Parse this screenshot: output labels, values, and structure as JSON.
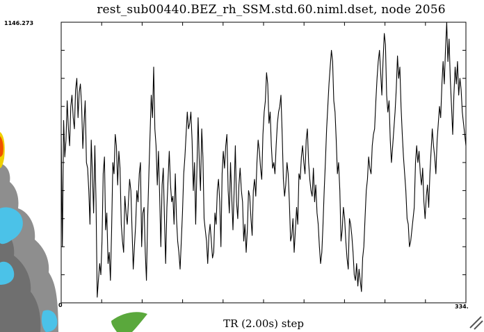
{
  "title": "rest_sub00440.BEZ_rh_SSM.std.60.niml.dset, node 2056",
  "chart_data": {
    "type": "line",
    "title": "rest_sub00440.BEZ_rh_SSM.std.60.niml.dset, node 2056",
    "xlabel": "TR (2.00s) step",
    "ylabel": "",
    "xlim": [
      0,
      334
    ],
    "ymax_label": "1146.273",
    "xmin_label": "0",
    "xmax_label": "334.",
    "ylim": [
      0,
      1
    ],
    "grid": false,
    "line_color": "#000000",
    "series": [
      {
        "values": [
          0.6,
          0.2,
          0.65,
          0.52,
          0.58,
          0.72,
          0.62,
          0.56,
          0.7,
          0.74,
          0.66,
          0.62,
          0.76,
          0.8,
          0.66,
          0.75,
          0.78,
          0.7,
          0.55,
          0.64,
          0.72,
          0.5,
          0.48,
          0.4,
          0.28,
          0.58,
          0.46,
          0.32,
          0.56,
          0.36,
          0.02,
          0.08,
          0.14,
          0.1,
          0.22,
          0.46,
          0.52,
          0.26,
          0.32,
          0.14,
          0.18,
          0.08,
          0.26,
          0.5,
          0.46,
          0.6,
          0.56,
          0.42,
          0.54,
          0.48,
          0.28,
          0.22,
          0.18,
          0.38,
          0.32,
          0.28,
          0.36,
          0.44,
          0.4,
          0.26,
          0.12,
          0.2,
          0.28,
          0.4,
          0.36,
          0.46,
          0.5,
          0.2,
          0.32,
          0.34,
          0.18,
          0.08,
          0.3,
          0.46,
          0.6,
          0.74,
          0.66,
          0.84,
          0.62,
          0.56,
          0.42,
          0.54,
          0.38,
          0.2,
          0.42,
          0.48,
          0.3,
          0.14,
          0.34,
          0.44,
          0.54,
          0.42,
          0.36,
          0.38,
          0.28,
          0.46,
          0.3,
          0.22,
          0.18,
          0.12,
          0.22,
          0.32,
          0.46,
          0.52,
          0.6,
          0.68,
          0.62,
          0.64,
          0.68,
          0.58,
          0.4,
          0.5,
          0.28,
          0.48,
          0.66,
          0.5,
          0.4,
          0.62,
          0.52,
          0.3,
          0.26,
          0.22,
          0.14,
          0.24,
          0.28,
          0.22,
          0.16,
          0.18,
          0.32,
          0.28,
          0.4,
          0.44,
          0.36,
          0.2,
          0.46,
          0.54,
          0.48,
          0.56,
          0.6,
          0.4,
          0.32,
          0.5,
          0.38,
          0.26,
          0.4,
          0.56,
          0.36,
          0.3,
          0.42,
          0.48,
          0.4,
          0.36,
          0.22,
          0.28,
          0.18,
          0.26,
          0.4,
          0.38,
          0.3,
          0.24,
          0.4,
          0.44,
          0.38,
          0.5,
          0.58,
          0.54,
          0.48,
          0.44,
          0.6,
          0.68,
          0.72,
          0.82,
          0.78,
          0.64,
          0.68,
          0.56,
          0.48,
          0.5,
          0.46,
          0.56,
          0.64,
          0.68,
          0.7,
          0.74,
          0.6,
          0.44,
          0.38,
          0.42,
          0.5,
          0.46,
          0.36,
          0.22,
          0.24,
          0.3,
          0.18,
          0.26,
          0.34,
          0.28,
          0.46,
          0.44,
          0.52,
          0.56,
          0.5,
          0.46,
          0.58,
          0.62,
          0.5,
          0.44,
          0.4,
          0.38,
          0.48,
          0.36,
          0.42,
          0.32,
          0.28,
          0.2,
          0.14,
          0.18,
          0.28,
          0.4,
          0.5,
          0.62,
          0.7,
          0.78,
          0.84,
          0.9,
          0.86,
          0.72,
          0.68,
          0.58,
          0.46,
          0.5,
          0.4,
          0.22,
          0.26,
          0.34,
          0.3,
          0.22,
          0.16,
          0.12,
          0.3,
          0.28,
          0.24,
          0.18,
          0.1,
          0.08,
          0.14,
          0.06,
          0.12,
          0.08,
          0.04,
          0.16,
          0.2,
          0.3,
          0.4,
          0.44,
          0.52,
          0.48,
          0.46,
          0.56,
          0.6,
          0.62,
          0.72,
          0.8,
          0.86,
          0.9,
          0.82,
          0.74,
          0.86,
          0.96,
          0.92,
          0.74,
          0.68,
          0.72,
          0.58,
          0.5,
          0.56,
          0.62,
          0.68,
          0.76,
          0.88,
          0.8,
          0.84,
          0.7,
          0.6,
          0.52,
          0.46,
          0.4,
          0.3,
          0.28,
          0.2,
          0.22,
          0.26,
          0.3,
          0.34,
          0.5,
          0.56,
          0.5,
          0.54,
          0.46,
          0.42,
          0.48,
          0.36,
          0.3,
          0.38,
          0.42,
          0.34,
          0.46,
          0.54,
          0.62,
          0.56,
          0.52,
          0.46,
          0.58,
          0.64,
          0.7,
          0.66,
          0.78,
          0.86,
          0.78,
          0.9,
          1.0,
          0.86,
          0.94,
          0.8,
          0.7,
          0.6,
          0.74,
          0.84,
          0.78,
          0.86,
          0.74,
          0.8,
          0.76,
          0.68,
          0.64,
          0.6,
          0.56
        ]
      }
    ]
  },
  "decor": {
    "brain_colors": [
      "#8e8e8e",
      "#4bc2e8",
      "#f0d000",
      "#f05000",
      "#5aa83c"
    ]
  }
}
